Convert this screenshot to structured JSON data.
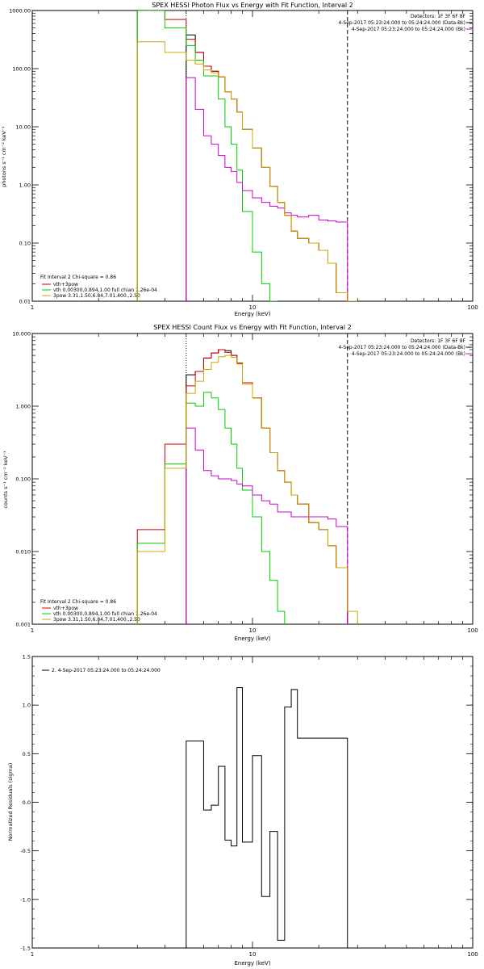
{
  "chart_data": [
    {
      "type": "line",
      "title": "SPEX HESSI Photon Flux vs Energy with Fit Function, Interval 2",
      "xlabel": "Energy (keV)",
      "ylabel": "photons s⁻¹ cm⁻² keV⁻¹",
      "xscale": "log",
      "yscale": "log",
      "xlim": [
        1,
        100
      ],
      "ylim": [
        0.01,
        1000
      ],
      "xticks": [
        {
          "v": 1,
          "label": "1"
        },
        {
          "v": 10,
          "label": "10"
        },
        {
          "v": 100,
          "label": "100"
        }
      ],
      "yticks": [
        {
          "v": 0.01,
          "label": "0.01"
        },
        {
          "v": 0.1,
          "label": "0.10"
        },
        {
          "v": 1,
          "label": "1.00"
        },
        {
          "v": 10,
          "label": "10.00"
        },
        {
          "v": 100,
          "label": "100.00"
        },
        {
          "v": 1000,
          "label": "1000.00"
        }
      ],
      "vlines": [
        {
          "x": 5,
          "style": "dotted",
          "color": "#000000"
        },
        {
          "x": 27,
          "style": "dashed",
          "color": "#000000"
        }
      ],
      "header_lines": [
        "Detectors: 1F 3F 6F 8F",
        "4-Sep-2017 05:23:24.000 to 05:24:24.000 (Data-Bk)",
        "4-Sep-2017 05:23:24.000 to 05:24:24.000 (Bk)"
      ],
      "header_colors": [
        "",
        "#000000",
        "#cc00cc"
      ],
      "legend_title": "Fit Interval 2  Chi-square = 0.86",
      "legend": [
        {
          "label": "vth+3pow",
          "color": "#cc0000"
        },
        {
          "label": "vth 0.00300,0.894,1.00  full chian 1.26e-04",
          "color": "#00cc00"
        },
        {
          "label": "3pow 3.31,1.50,6.84,7.01,400.,2.50",
          "color": "#ccaa00"
        }
      ],
      "series": [
        {
          "name": "Data-Bk",
          "color": "#000000",
          "edges": [
            5,
            5.5,
            6,
            6.5,
            7,
            7.5,
            8,
            8.5,
            9,
            10,
            11,
            12,
            13,
            14,
            15,
            16,
            18,
            20,
            22,
            24,
            27
          ],
          "values": [
            380,
            190,
            110,
            90,
            72,
            40,
            30,
            18,
            9,
            4.3,
            2,
            0.95,
            0.5,
            0.3,
            0.16,
            0.12,
            0.1,
            0.075,
            0.045,
            0.014
          ]
        },
        {
          "name": "",
          "color": "#cc0000",
          "edges": [
            3,
            4,
            5,
            5.5,
            6,
            6.5,
            7,
            7.5,
            8,
            8.5,
            9,
            10,
            11,
            12,
            13,
            14,
            15,
            16,
            18,
            20,
            22,
            24,
            27
          ],
          "values": [
            1000,
            700,
            320,
            190,
            110,
            90,
            72,
            40,
            30,
            18,
            9,
            4.3,
            2,
            0.95,
            0.5,
            0.3,
            0.16,
            0.12,
            0.1,
            0.075,
            0.045,
            0.014
          ]
        },
        {
          "name": "",
          "color": "#00cc00",
          "edges": [
            3,
            4,
            5,
            5.5,
            6,
            6.5,
            7,
            7.5,
            8,
            8.5,
            9,
            10,
            11,
            12,
            13
          ],
          "values": [
            1000,
            500,
            250,
            140,
            75,
            75,
            30,
            10,
            5,
            1.8,
            0.35,
            0.07,
            0.02,
            0.01
          ]
        },
        {
          "name": "",
          "color": "#cc00cc",
          "edges": [
            5,
            5.5,
            6,
            6.5,
            7,
            7.5,
            8,
            8.5,
            9,
            10,
            11,
            12,
            13,
            14,
            15,
            16,
            18,
            20,
            22,
            24,
            27
          ],
          "values": [
            70,
            20,
            7,
            5,
            3.2,
            2.0,
            1.7,
            1.1,
            0.8,
            0.6,
            0.5,
            0.43,
            0.4,
            0.33,
            0.3,
            0.28,
            0.3,
            0.25,
            0.24,
            0.23
          ]
        },
        {
          "name": "",
          "color": "#ccaa00",
          "edges": [
            3,
            4,
            5,
            5.5,
            6,
            6.5,
            7,
            7.5,
            8,
            8.5,
            9,
            10,
            11,
            12,
            13,
            14,
            15,
            16,
            18,
            20,
            22,
            24,
            27,
            30
          ],
          "values": [
            290,
            190,
            140,
            120,
            95,
            85,
            72,
            40,
            30,
            18,
            9,
            4.3,
            2,
            0.95,
            0.5,
            0.3,
            0.16,
            0.12,
            0.1,
            0.075,
            0.045,
            0.014,
            0.01
          ]
        }
      ]
    },
    {
      "type": "line",
      "title": "SPEX HESSI Count Flux vs Energy with Fit Function, Interval 2",
      "xlabel": "Energy (keV)",
      "ylabel": "counts s⁻¹ cm⁻² keV⁻¹",
      "xscale": "log",
      "yscale": "log",
      "xlim": [
        1,
        100
      ],
      "ylim": [
        0.001,
        10
      ],
      "xticks": [
        {
          "v": 1,
          "label": "1"
        },
        {
          "v": 10,
          "label": "10"
        },
        {
          "v": 100,
          "label": "100"
        }
      ],
      "yticks": [
        {
          "v": 0.001,
          "label": "0.001"
        },
        {
          "v": 0.01,
          "label": "0.010"
        },
        {
          "v": 0.1,
          "label": "0.100"
        },
        {
          "v": 1,
          "label": "1.000"
        },
        {
          "v": 10,
          "label": "10.000"
        }
      ],
      "vlines": [
        {
          "x": 5,
          "style": "dotted",
          "color": "#000000"
        },
        {
          "x": 27,
          "style": "dashed",
          "color": "#000000"
        }
      ],
      "header_lines": [
        "Detectors: 1F 3F 6F 8F",
        "4-Sep-2017 05:23:24.000 to 05:24:24.000 (Data-Bk)",
        "4-Sep-2017 05:23:24.000 to 05:24:24.000 (Bk)"
      ],
      "header_colors": [
        "",
        "#000000",
        "#cc00cc"
      ],
      "legend_title": "Fit Interval 2  Chi-square = 0.86",
      "legend": [
        {
          "label": "vth+3pow",
          "color": "#cc0000"
        },
        {
          "label": "vth 0.00300,0.894,1.00  full chian 1.26e-04",
          "color": "#00cc00"
        },
        {
          "label": "3pow 3.31,1.50,6.84,7.01,400.,2.50",
          "color": "#ccaa00"
        }
      ],
      "series": [
        {
          "name": "Data-Bk",
          "color": "#000000",
          "edges": [
            5,
            5.5,
            6,
            6.5,
            7,
            7.5,
            8,
            8.5,
            9,
            10,
            11,
            12,
            13,
            14,
            15,
            16,
            18,
            20,
            22,
            24,
            27
          ],
          "values": [
            2.7,
            3.0,
            4.6,
            5.4,
            6.0,
            5.8,
            5.0,
            3.9,
            2.1,
            1.3,
            0.5,
            0.23,
            0.13,
            0.09,
            0.06,
            0.045,
            0.025,
            0.02,
            0.012,
            0.006
          ]
        },
        {
          "name": "",
          "color": "#cc0000",
          "edges": [
            3,
            4,
            5,
            5.5,
            6,
            6.5,
            7,
            7.5,
            8,
            8.5,
            9,
            10,
            11,
            12,
            13,
            14,
            15,
            16,
            18,
            20,
            22,
            24,
            27
          ],
          "values": [
            0.02,
            0.3,
            1.9,
            3.0,
            4.6,
            5.4,
            6.0,
            5.5,
            5.0,
            3.9,
            2.1,
            1.3,
            0.5,
            0.23,
            0.13,
            0.09,
            0.06,
            0.045,
            0.025,
            0.02,
            0.012,
            0.006
          ]
        },
        {
          "name": "",
          "color": "#00cc00",
          "edges": [
            3,
            4,
            5,
            5.5,
            6,
            6.5,
            7,
            7.5,
            8,
            8.5,
            9,
            10,
            11,
            12,
            13,
            14
          ],
          "values": [
            0.013,
            0.16,
            1.1,
            1.0,
            1.55,
            1.3,
            0.9,
            0.5,
            0.3,
            0.14,
            0.07,
            0.03,
            0.01,
            0.004,
            0.0015
          ]
        },
        {
          "name": "",
          "color": "#cc00cc",
          "edges": [
            5,
            5.5,
            6,
            6.5,
            7,
            7.5,
            8,
            8.5,
            9,
            10,
            11,
            12,
            13,
            14,
            15,
            16,
            18,
            20,
            22,
            24,
            27
          ],
          "values": [
            0.5,
            0.25,
            0.13,
            0.11,
            0.1,
            0.1,
            0.095,
            0.085,
            0.08,
            0.06,
            0.05,
            0.045,
            0.035,
            0.035,
            0.03,
            0.03,
            0.03,
            0.03,
            0.028,
            0.022
          ]
        },
        {
          "name": "",
          "color": "#ccaa00",
          "edges": [
            3,
            4,
            5,
            5.5,
            6,
            6.5,
            7,
            7.5,
            8,
            8.5,
            9,
            10,
            11,
            12,
            13,
            14,
            15,
            16,
            18,
            20,
            22,
            24,
            27,
            30
          ],
          "values": [
            0.01,
            0.14,
            1.5,
            2.2,
            3.2,
            4.0,
            4.8,
            5.0,
            4.7,
            3.8,
            2.0,
            1.3,
            0.5,
            0.23,
            0.13,
            0.09,
            0.06,
            0.045,
            0.025,
            0.02,
            0.012,
            0.006,
            0.0015
          ]
        }
      ]
    },
    {
      "type": "line",
      "title": "",
      "xlabel": "Energy (keV)",
      "ylabel": "Normalized Residuals (sigma)",
      "xscale": "log",
      "yscale": "linear",
      "xlim": [
        1,
        100
      ],
      "ylim": [
        -1.5,
        1.5
      ],
      "xticks": [
        {
          "v": 1,
          "label": "1"
        },
        {
          "v": 10,
          "label": "10"
        },
        {
          "v": 100,
          "label": "100"
        }
      ],
      "yticks": [
        {
          "v": -1.5,
          "label": "-1.5"
        },
        {
          "v": -1.0,
          "label": "-1.0"
        },
        {
          "v": -0.5,
          "label": "-0.5"
        },
        {
          "v": 0,
          "label": "0.0"
        },
        {
          "v": 0.5,
          "label": "0.5"
        },
        {
          "v": 1.0,
          "label": "1.0"
        },
        {
          "v": 1.5,
          "label": "1.5"
        }
      ],
      "vlines": [],
      "header_lines": [],
      "header_colors": [],
      "legend_title": "",
      "legend": [
        {
          "label": "2.  4-Sep-2017 05:23:24.000 to 05:24:24.000",
          "color": "#000000"
        }
      ],
      "series": [
        {
          "name": "",
          "color": "#000000",
          "edges": [
            5,
            5.5,
            6,
            6.5,
            7,
            7.5,
            8,
            8.5,
            9,
            10,
            11,
            12,
            13,
            14,
            15,
            16,
            18,
            20,
            22,
            24,
            27
          ],
          "values": [
            0.63,
            0.63,
            -0.08,
            -0.03,
            0.37,
            -0.39,
            -0.45,
            1.18,
            -0.41,
            0.48,
            -0.97,
            -0.3,
            -1.42,
            0.98,
            1.16,
            0.66,
            0.66,
            0.66,
            0.66,
            0.66
          ],
          "y_start": -1.5,
          "y_end": -1.5
        }
      ]
    }
  ]
}
